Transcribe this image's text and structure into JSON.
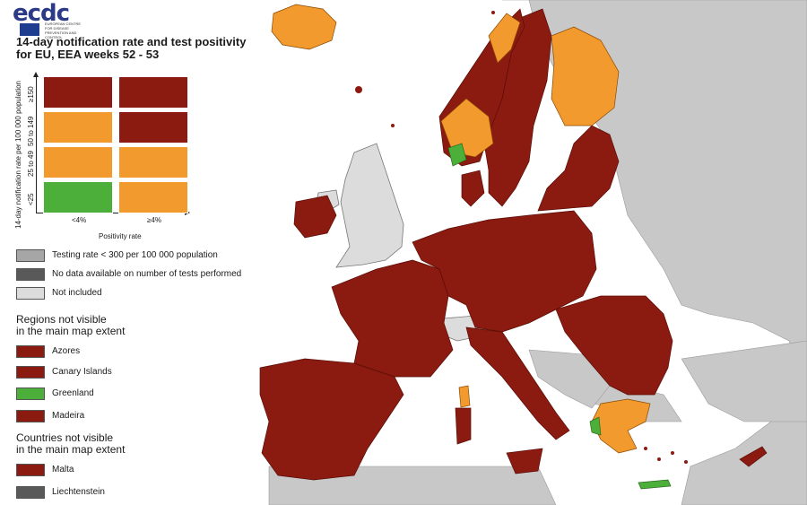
{
  "header": {
    "logo_text": "ecdc",
    "logo_subtitle": "EUROPEAN CENTRE FOR DISEASE PREVENTION AND CONTROL",
    "title_line1": "14-day notification rate and test positivity",
    "title_line2": "for EU, EEA weeks 52 - 53"
  },
  "matrix": {
    "y_axis_title": "14-day notification rate per 100 000 population",
    "x_axis_title": "Positivity rate",
    "rows": [
      "≥150",
      "50 to 149",
      "25 to 49",
      "<25"
    ],
    "cols": [
      "<4%",
      "≥4%"
    ],
    "cells": [
      [
        "dark-red",
        "dark-red"
      ],
      [
        "orange",
        "dark-red"
      ],
      [
        "orange",
        "orange"
      ],
      [
        "green",
        "orange"
      ]
    ]
  },
  "legend": {
    "status_items": [
      {
        "label": "Testing rate < 300 per 100 000 population",
        "color": "#a6a6a6"
      },
      {
        "label": "No data available on number of tests performed",
        "color": "#595959"
      },
      {
        "label": "Not included",
        "color": "#dcdcdc"
      }
    ],
    "regions_heading_1": "Regions not visible",
    "regions_heading_2": "in the main map extent",
    "regions": [
      {
        "label": "Azores",
        "color": "#8b1a10"
      },
      {
        "label": "Canary Islands",
        "color": "#8b1a10"
      },
      {
        "label": "Greenland",
        "color": "#4caf3a"
      },
      {
        "label": "Madeira",
        "color": "#8b1a10"
      }
    ],
    "countries_heading_1": "Countries not visible",
    "countries_heading_2": "in the main map extent",
    "countries": [
      {
        "label": "Malta",
        "color": "#8b1a10"
      },
      {
        "label": "Liechtenstein",
        "color": "#595959"
      }
    ]
  },
  "colors": {
    "dark-red": "#8b1a10",
    "orange": "#f29a2e",
    "green": "#4caf3a",
    "not-included": "#dcdcdc",
    "sea": "#ffffff",
    "outside": "#c8c8c8",
    "border": "#5a0e08"
  }
}
